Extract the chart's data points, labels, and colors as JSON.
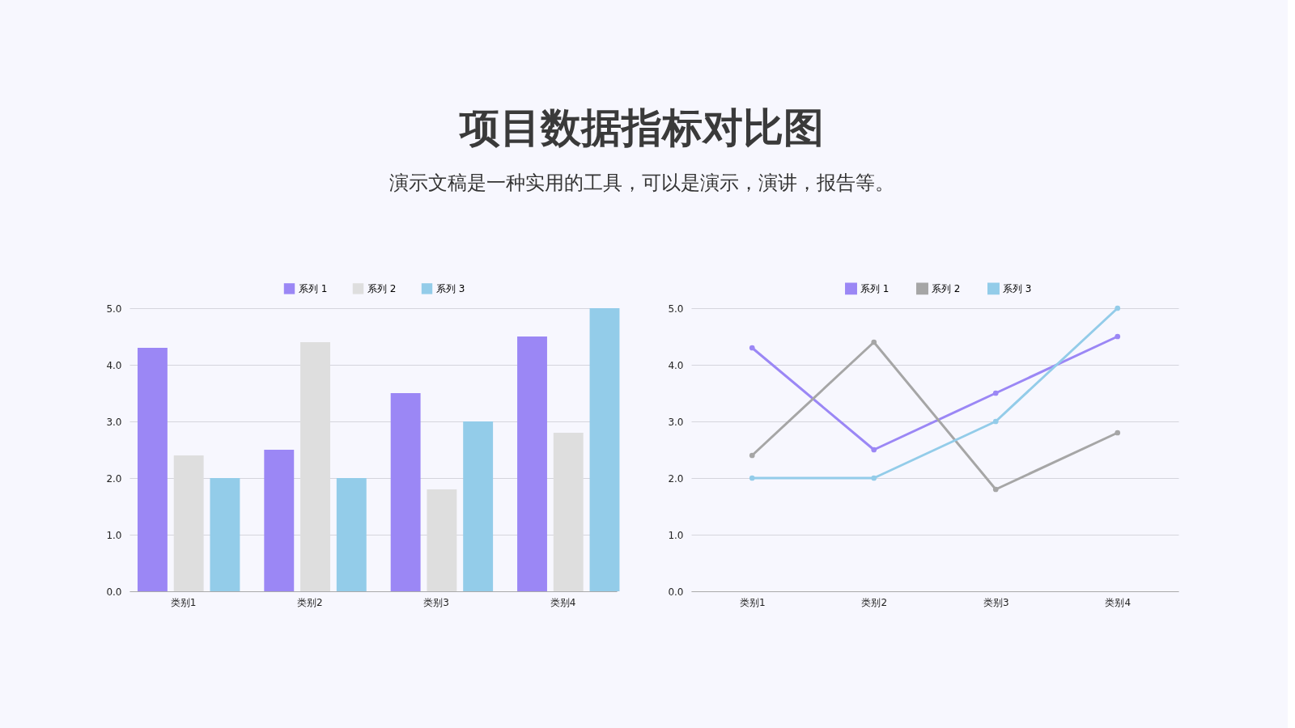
{
  "chart_data": [
    {
      "type": "bar",
      "title": "项目数据指标对比图",
      "subtitle": "演示文稿是一种实用的工具，可以是演示，演讲，报告等。",
      "categories": [
        "类别1",
        "类别2",
        "类别3",
        "类别4"
      ],
      "series": [
        {
          "name": "系列 1",
          "color": "#9b87f5",
          "values": [
            4.3,
            2.5,
            3.5,
            4.5
          ]
        },
        {
          "name": "系列 2",
          "color": "#dedede",
          "values": [
            2.4,
            4.4,
            1.8,
            2.8
          ]
        },
        {
          "name": "系列 3",
          "color": "#93cce9",
          "values": [
            2.0,
            2.0,
            3.0,
            5.0
          ]
        }
      ],
      "ylim": [
        0,
        5
      ],
      "yticks": [
        {
          "value": 0,
          "label": "0.0"
        },
        {
          "value": 1,
          "label": "1.0"
        },
        {
          "value": 2,
          "label": "2.0"
        },
        {
          "value": 3,
          "label": "3.0"
        },
        {
          "value": 4,
          "label": "4.0"
        },
        {
          "value": 5,
          "label": "5.0"
        }
      ],
      "grid": "y",
      "legend": "top"
    },
    {
      "type": "line",
      "categories": [
        "类别1",
        "类别2",
        "类别3",
        "类别4"
      ],
      "series": [
        {
          "name": "系列 1",
          "color": "#9b87f5",
          "values": [
            4.3,
            2.5,
            3.5,
            4.5
          ]
        },
        {
          "name": "系列 2",
          "color": "#a6a6a6",
          "values": [
            2.4,
            4.4,
            1.8,
            2.8
          ]
        },
        {
          "name": "系列 3",
          "color": "#93cce9",
          "values": [
            2.0,
            2.0,
            3.0,
            5.0
          ]
        }
      ],
      "ylim": [
        0,
        5
      ],
      "yticks": [
        {
          "value": 0,
          "label": "0.0"
        },
        {
          "value": 1,
          "label": "1.0"
        },
        {
          "value": 2,
          "label": "2.0"
        },
        {
          "value": 3,
          "label": "3.0"
        },
        {
          "value": 4,
          "label": "4.0"
        },
        {
          "value": 5,
          "label": "5.0"
        }
      ],
      "grid": "y",
      "legend": "top",
      "marker": "circle",
      "line_style": "solid"
    }
  ]
}
